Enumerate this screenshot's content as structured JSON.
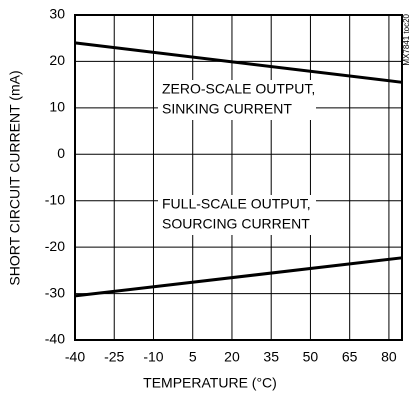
{
  "chart_data": {
    "type": "line",
    "xlabel": "TEMPERATURE (°C)",
    "ylabel": "SHORT CIRCUIT CURRENT (mA)",
    "x": [
      -40,
      85
    ],
    "series": [
      {
        "name": "ZERO-SCALE OUTPUT, SINKING CURRENT",
        "color": "#000000",
        "values": [
          24,
          15.5
        ]
      },
      {
        "name": "FULL-SCALE OUTPUT, SOURCING CURRENT",
        "color": "#000000",
        "values": [
          -30.5,
          -22.3
        ]
      }
    ],
    "annotations": [
      [
        "ZERO-SCALE OUTPUT,",
        "SINKING CURRENT"
      ],
      [
        "FULL-SCALE OUTPUT,",
        "SOURCING CURRENT"
      ]
    ],
    "note": "MX7841 toc20",
    "xlim": [
      -40,
      85
    ],
    "xticks": [
      -40,
      -25,
      -10,
      5,
      20,
      35,
      50,
      65,
      80
    ],
    "ylim": [
      -40,
      30
    ],
    "yticks": [
      -40,
      -30,
      -20,
      -10,
      0,
      10,
      20,
      30
    ],
    "grid": true
  }
}
